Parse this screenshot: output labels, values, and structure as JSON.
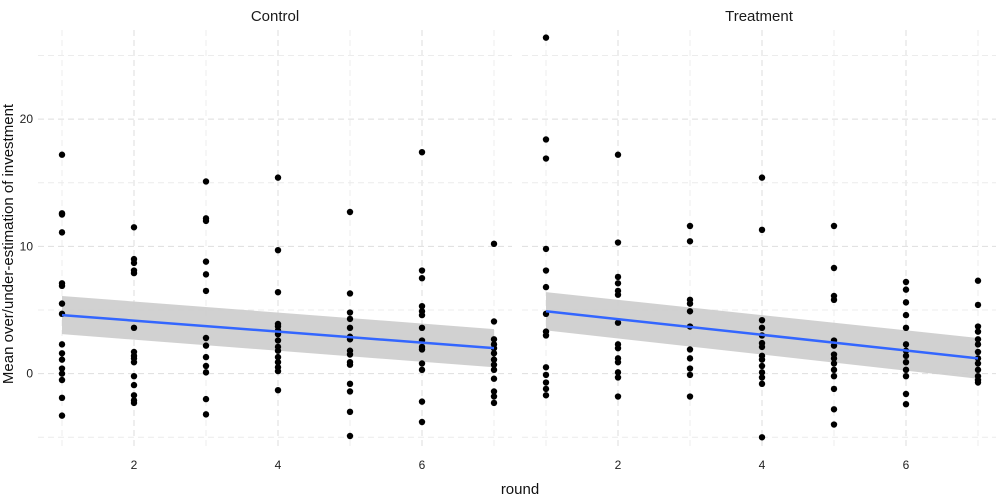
{
  "chart_data": {
    "type": "scatter",
    "xlabel": "round",
    "ylabel": "Mean over/under-estimation of investment",
    "xlim": [
      1,
      7
    ],
    "ylim": [
      -6,
      27
    ],
    "x_ticks": [
      2,
      4,
      6
    ],
    "y_ticks": [
      0,
      10,
      20
    ],
    "grid": true,
    "colors": {
      "points": "#000000",
      "fit_line": "#3366ff",
      "ribbon": "#cccccc"
    },
    "panels": [
      {
        "title": "Control",
        "fit": {
          "x": [
            1,
            7
          ],
          "y": [
            4.6,
            2.0
          ],
          "ci_low_start": 3.1,
          "ci_high_start": 6.1,
          "ci_low_end": 0.5,
          "ci_high_end": 3.5
        },
        "points": [
          [
            1,
            17.2
          ],
          [
            1,
            12.6
          ],
          [
            1,
            12.5
          ],
          [
            1,
            11.1
          ],
          [
            1,
            7.1
          ],
          [
            1,
            6.9
          ],
          [
            1,
            5.5
          ],
          [
            1,
            4.7
          ],
          [
            1,
            2.3
          ],
          [
            1,
            1.6
          ],
          [
            1,
            1.1
          ],
          [
            1,
            0.4
          ],
          [
            1,
            0.0
          ],
          [
            1,
            -0.5
          ],
          [
            1,
            -1.9
          ],
          [
            1,
            -3.3
          ],
          [
            2,
            11.5
          ],
          [
            2,
            9.0
          ],
          [
            2,
            8.7
          ],
          [
            2,
            8.1
          ],
          [
            2,
            7.9
          ],
          [
            2,
            3.6
          ],
          [
            2,
            1.7
          ],
          [
            2,
            1.4
          ],
          [
            2,
            1.2
          ],
          [
            2,
            0.9
          ],
          [
            2,
            -0.2
          ],
          [
            2,
            -0.9
          ],
          [
            2,
            -1.7
          ],
          [
            2,
            -2.1
          ],
          [
            2,
            -2.3
          ],
          [
            3,
            15.1
          ],
          [
            3,
            12.2
          ],
          [
            3,
            12.0
          ],
          [
            3,
            8.8
          ],
          [
            3,
            7.8
          ],
          [
            3,
            6.5
          ],
          [
            3,
            2.8
          ],
          [
            3,
            2.2
          ],
          [
            3,
            1.3
          ],
          [
            3,
            0.6
          ],
          [
            3,
            0.1
          ],
          [
            3,
            -2.0
          ],
          [
            3,
            -3.2
          ],
          [
            4,
            15.4
          ],
          [
            4,
            9.7
          ],
          [
            4,
            6.4
          ],
          [
            4,
            3.9
          ],
          [
            4,
            3.7
          ],
          [
            4,
            3.4
          ],
          [
            4,
            3.1
          ],
          [
            4,
            2.6
          ],
          [
            4,
            2.1
          ],
          [
            4,
            1.8
          ],
          [
            4,
            1.3
          ],
          [
            4,
            0.9
          ],
          [
            4,
            0.5
          ],
          [
            4,
            0.2
          ],
          [
            4,
            -1.3
          ],
          [
            5,
            12.7
          ],
          [
            5,
            6.3
          ],
          [
            5,
            4.8
          ],
          [
            5,
            4.3
          ],
          [
            5,
            3.6
          ],
          [
            5,
            2.9
          ],
          [
            5,
            2.7
          ],
          [
            5,
            1.8
          ],
          [
            5,
            1.5
          ],
          [
            5,
            0.9
          ],
          [
            5,
            0.7
          ],
          [
            5,
            -0.8
          ],
          [
            5,
            -1.4
          ],
          [
            5,
            -3.0
          ],
          [
            5,
            -4.9
          ],
          [
            6,
            17.4
          ],
          [
            6,
            8.1
          ],
          [
            6,
            7.5
          ],
          [
            6,
            5.3
          ],
          [
            6,
            4.9
          ],
          [
            6,
            4.6
          ],
          [
            6,
            3.6
          ],
          [
            6,
            2.6
          ],
          [
            6,
            2.1
          ],
          [
            6,
            1.9
          ],
          [
            6,
            0.8
          ],
          [
            6,
            0.3
          ],
          [
            6,
            -2.2
          ],
          [
            6,
            -3.8
          ],
          [
            7,
            10.2
          ],
          [
            7,
            4.1
          ],
          [
            7,
            2.7
          ],
          [
            7,
            2.3
          ],
          [
            7,
            2.0
          ],
          [
            7,
            1.6
          ],
          [
            7,
            1.1
          ],
          [
            7,
            0.7
          ],
          [
            7,
            0.3
          ],
          [
            7,
            -0.4
          ],
          [
            7,
            -1.4
          ],
          [
            7,
            -1.8
          ],
          [
            7,
            -2.3
          ]
        ]
      },
      {
        "title": "Treatment",
        "fit": {
          "x": [
            1,
            7
          ],
          "y": [
            4.9,
            1.2
          ],
          "ci_low_start": 3.4,
          "ci_high_start": 6.4,
          "ci_low_end": -0.4,
          "ci_high_end": 2.8
        },
        "points": [
          [
            1,
            26.4
          ],
          [
            1,
            18.4
          ],
          [
            1,
            16.9
          ],
          [
            1,
            9.8
          ],
          [
            1,
            8.1
          ],
          [
            1,
            6.8
          ],
          [
            1,
            4.7
          ],
          [
            1,
            3.3
          ],
          [
            1,
            3.0
          ],
          [
            1,
            0.5
          ],
          [
            1,
            -0.1
          ],
          [
            1,
            -0.7
          ],
          [
            1,
            -1.2
          ],
          [
            1,
            -1.7
          ],
          [
            2,
            17.2
          ],
          [
            2,
            10.3
          ],
          [
            2,
            7.6
          ],
          [
            2,
            7.1
          ],
          [
            2,
            6.5
          ],
          [
            2,
            6.2
          ],
          [
            2,
            4.0
          ],
          [
            2,
            2.3
          ],
          [
            2,
            2.0
          ],
          [
            2,
            1.2
          ],
          [
            2,
            0.9
          ],
          [
            2,
            0.1
          ],
          [
            2,
            -0.3
          ],
          [
            2,
            -1.8
          ],
          [
            3,
            11.6
          ],
          [
            3,
            10.4
          ],
          [
            3,
            5.8
          ],
          [
            3,
            5.5
          ],
          [
            3,
            4.9
          ],
          [
            3,
            3.7
          ],
          [
            3,
            1.9
          ],
          [
            3,
            1.2
          ],
          [
            3,
            0.4
          ],
          [
            3,
            -0.1
          ],
          [
            3,
            -1.8
          ],
          [
            4,
            15.4
          ],
          [
            4,
            11.3
          ],
          [
            4,
            4.2
          ],
          [
            4,
            3.6
          ],
          [
            4,
            3.0
          ],
          [
            4,
            2.4
          ],
          [
            4,
            2.1
          ],
          [
            4,
            1.4
          ],
          [
            4,
            1.1
          ],
          [
            4,
            0.6
          ],
          [
            4,
            0.1
          ],
          [
            4,
            -0.3
          ],
          [
            4,
            -0.8
          ],
          [
            4,
            -5.0
          ],
          [
            5,
            11.6
          ],
          [
            5,
            8.3
          ],
          [
            5,
            6.1
          ],
          [
            5,
            5.8
          ],
          [
            5,
            2.6
          ],
          [
            5,
            2.2
          ],
          [
            5,
            1.5
          ],
          [
            5,
            1.2
          ],
          [
            5,
            0.8
          ],
          [
            5,
            0.3
          ],
          [
            5,
            -0.2
          ],
          [
            5,
            -1.2
          ],
          [
            5,
            -2.8
          ],
          [
            5,
            -4.0
          ],
          [
            6,
            7.2
          ],
          [
            6,
            6.6
          ],
          [
            6,
            5.6
          ],
          [
            6,
            4.6
          ],
          [
            6,
            3.6
          ],
          [
            6,
            2.3
          ],
          [
            6,
            1.8
          ],
          [
            6,
            1.4
          ],
          [
            6,
            0.9
          ],
          [
            6,
            0.3
          ],
          [
            6,
            -0.2
          ],
          [
            6,
            -1.6
          ],
          [
            6,
            -2.4
          ],
          [
            7,
            7.3
          ],
          [
            7,
            5.4
          ],
          [
            7,
            3.7
          ],
          [
            7,
            3.3
          ],
          [
            7,
            2.7
          ],
          [
            7,
            2.3
          ],
          [
            7,
            1.7
          ],
          [
            7,
            1.2
          ],
          [
            7,
            0.8
          ],
          [
            7,
            0.3
          ],
          [
            7,
            -0.2
          ],
          [
            7,
            -0.5
          ],
          [
            7,
            -0.7
          ]
        ]
      }
    ]
  }
}
